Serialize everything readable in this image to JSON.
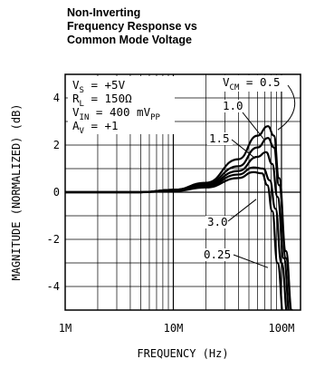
{
  "chart_data": {
    "type": "line",
    "title": [
      "Non-Inverting",
      "Frequency Response vs",
      "Common Mode Voltage"
    ],
    "xlabel": "FREQUENCY (Hz)",
    "ylabel": "MAGNITUDE (NORMALIZED) (dB)",
    "x_scale": "log",
    "xlim": [
      1000000,
      150000000
    ],
    "ylim": [
      -5,
      5
    ],
    "grid": true,
    "x_ticks": [
      {
        "v": 1000000,
        "label": "1M"
      },
      {
        "v": 10000000,
        "label": "10M"
      },
      {
        "v": 100000000,
        "label": "100M"
      }
    ],
    "y_ticks": [
      {
        "v": 4,
        "label": "4"
      },
      {
        "v": 2,
        "label": "2"
      },
      {
        "v": 0,
        "label": "0"
      },
      {
        "v": -2,
        "label": "-2"
      },
      {
        "v": -4,
        "label": "-4"
      }
    ],
    "conditions": [
      {
        "label": "V",
        "sub": "S",
        "rest": " = +5V"
      },
      {
        "label": "R",
        "sub": "L",
        "rest": " = 150Ω"
      },
      {
        "label": "V",
        "sub": "IN",
        "rest": " = 400 mV",
        "sub2": "PP"
      },
      {
        "label": "A",
        "sub": "V",
        "rest": " = +1"
      }
    ],
    "legend_header": {
      "label": "V",
      "sub": "CM",
      "rest": " = 0.5"
    },
    "series": [
      {
        "name": "0.5",
        "x": [
          1000000,
          5000000,
          10000000,
          20000000,
          40000000,
          60000000,
          75000000,
          85000000,
          95000000,
          110000000,
          125000000,
          140000000
        ],
        "y": [
          0,
          0,
          0.1,
          0.4,
          1.4,
          2.4,
          2.8,
          2.4,
          0.6,
          -2.5,
          -5,
          -7
        ]
      },
      {
        "name": "1.0",
        "x": [
          1000000,
          5000000,
          10000000,
          20000000,
          40000000,
          60000000,
          75000000,
          85000000,
          95000000,
          110000000,
          125000000,
          140000000
        ],
        "y": [
          0,
          0,
          0.1,
          0.35,
          1.1,
          1.9,
          2.3,
          1.9,
          0.3,
          -2.8,
          -5.2,
          -7
        ]
      },
      {
        "name": "1.5",
        "x": [
          1000000,
          5000000,
          10000000,
          20000000,
          40000000,
          60000000,
          72000000,
          82000000,
          92000000,
          105000000,
          120000000,
          135000000
        ],
        "y": [
          0,
          0,
          0.1,
          0.3,
          0.9,
          1.5,
          1.7,
          1.2,
          -0.2,
          -2.8,
          -5.3,
          -7
        ]
      },
      {
        "name": "3.0",
        "x": [
          1000000,
          5000000,
          10000000,
          20000000,
          40000000,
          55000000,
          68000000,
          78000000,
          88000000,
          100000000,
          115000000,
          130000000
        ],
        "y": [
          0,
          0,
          0.1,
          0.25,
          0.75,
          1.05,
          1.0,
          0.5,
          -0.7,
          -3.0,
          -5.3,
          -7
        ]
      },
      {
        "name": "0.25",
        "x": [
          1000000,
          5000000,
          10000000,
          20000000,
          40000000,
          55000000,
          66000000,
          74000000,
          82000000,
          92000000,
          105000000,
          120000000
        ],
        "y": [
          0,
          0,
          0.05,
          0.2,
          0.6,
          0.85,
          0.8,
          0.3,
          -0.8,
          -3.0,
          -5.3,
          -7
        ]
      }
    ]
  }
}
